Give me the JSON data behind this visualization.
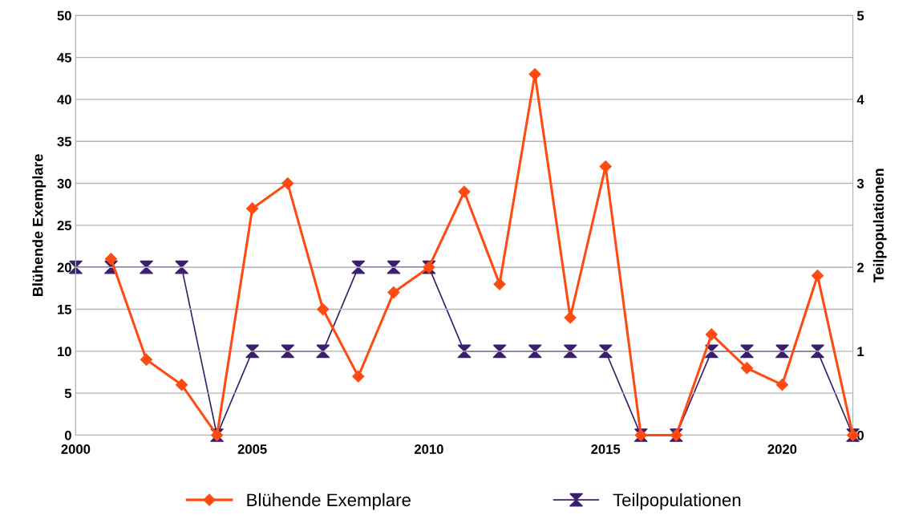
{
  "chart_data": {
    "type": "line",
    "ylabel": "Blühende Exemplare",
    "y2label": "Teilpopulationen",
    "x": [
      2000,
      2001,
      2002,
      2003,
      2004,
      2005,
      2006,
      2007,
      2008,
      2009,
      2010,
      2011,
      2012,
      2013,
      2014,
      2015,
      2016,
      2017,
      2018,
      2019,
      2020,
      2021,
      2022
    ],
    "series": [
      {
        "name": "Blühende Exemplare",
        "color": "#ff4b12",
        "marker": "diamond",
        "values": [
          null,
          21,
          9,
          6,
          0,
          27,
          30,
          15,
          7,
          17,
          20,
          29,
          18,
          43,
          14,
          32,
          0,
          0,
          12,
          8,
          6,
          19,
          0
        ]
      },
      {
        "name": "Teilpopulationen",
        "color": "#3b1f6e",
        "marker": "triangle",
        "axis": "y2",
        "values": [
          2,
          2,
          2,
          2,
          0,
          1,
          1,
          1,
          2,
          2,
          2,
          1,
          1,
          1,
          1,
          1,
          0,
          0,
          1,
          1,
          1,
          1,
          0
        ]
      }
    ],
    "xlim": [
      2000,
      2022
    ],
    "xticks": [
      2000,
      2005,
      2010,
      2015,
      2020
    ],
    "ylim": [
      0,
      50
    ],
    "yticks": [
      0,
      5,
      10,
      15,
      20,
      25,
      30,
      35,
      40,
      45,
      50
    ],
    "y2lim": [
      0,
      5
    ],
    "y2ticks": [
      0,
      1,
      2,
      3,
      4,
      5
    ],
    "grid": "y",
    "legend": "bottom"
  }
}
